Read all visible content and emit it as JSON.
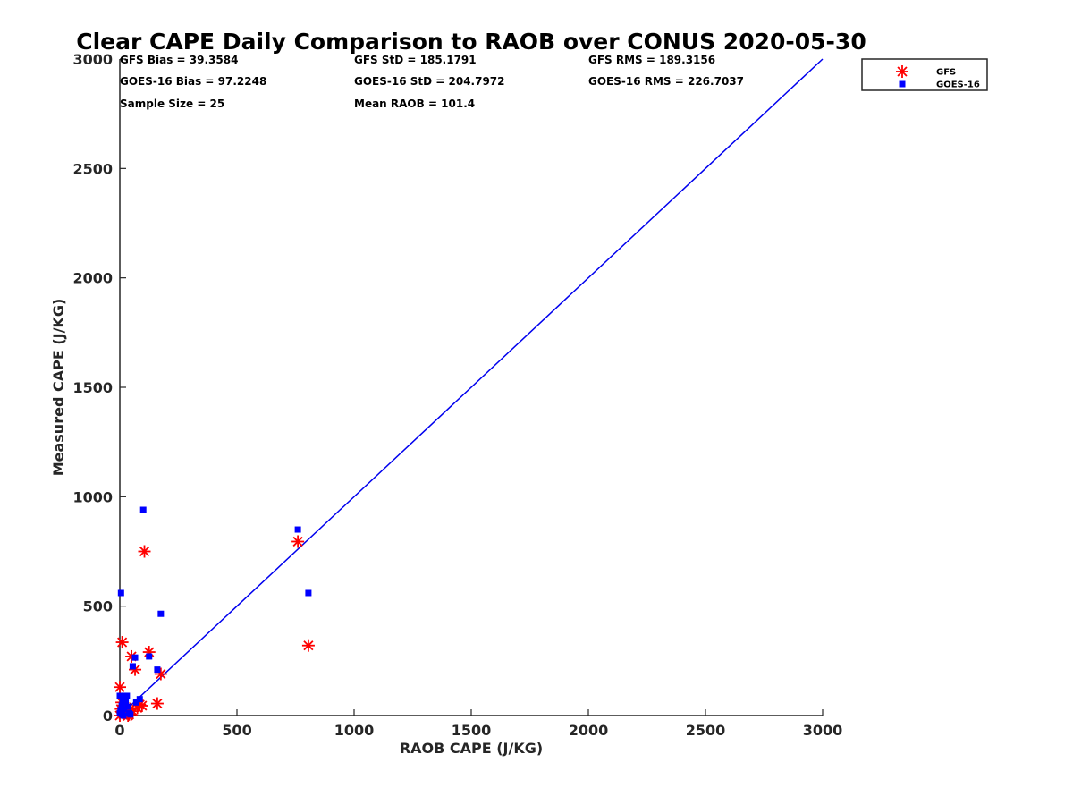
{
  "chart_data": {
    "type": "scatter",
    "title": "Clear CAPE Daily Comparison to RAOB over CONUS 2020-05-30",
    "xlabel": "RAOB CAPE (J/KG)",
    "ylabel": "Measured CAPE (J/KG)",
    "xlim": [
      0,
      3000
    ],
    "ylim": [
      0,
      3000
    ],
    "xticks": [
      "0",
      "500",
      "1000",
      "1500",
      "2000",
      "2500",
      "3000"
    ],
    "yticks": [
      "0",
      "500",
      "1000",
      "1500",
      "2000",
      "2500",
      "3000"
    ],
    "grid": false,
    "legend_position": "top-right",
    "stats": [
      "GFS Bias = 39.3584",
      "GFS StD = 185.1791",
      "GFS RMS = 189.3156",
      "GOES-16 Bias = 97.2248",
      "GOES-16 StD = 204.7972",
      "GOES-16 RMS = 226.7037",
      "Sample Size = 25",
      "Mean RAOB = 101.4"
    ],
    "reference_line": {
      "x": [
        0,
        3000
      ],
      "y": [
        0,
        3000
      ],
      "color": "#0000ee"
    },
    "series": [
      {
        "name": "GFS",
        "marker": "asterisk",
        "color": "#ff0000",
        "points": [
          [
            0,
            130
          ],
          [
            5,
            30
          ],
          [
            10,
            335
          ],
          [
            15,
            5
          ],
          [
            20,
            40
          ],
          [
            25,
            15
          ],
          [
            30,
            10
          ],
          [
            35,
            0
          ],
          [
            40,
            5
          ],
          [
            50,
            270
          ],
          [
            55,
            20
          ],
          [
            65,
            210
          ],
          [
            75,
            35
          ],
          [
            85,
            50
          ],
          [
            95,
            45
          ],
          [
            105,
            750
          ],
          [
            125,
            290
          ],
          [
            160,
            55
          ],
          [
            175,
            190
          ],
          [
            760,
            795
          ],
          [
            805,
            320
          ],
          [
            0,
            0
          ],
          [
            12,
            20
          ],
          [
            45,
            30
          ],
          [
            8,
            60
          ]
        ]
      },
      {
        "name": "GOES-16",
        "marker": "square",
        "color": "#0000ff",
        "points": [
          [
            0,
            90
          ],
          [
            5,
            560
          ],
          [
            8,
            45
          ],
          [
            10,
            5
          ],
          [
            15,
            0
          ],
          [
            18,
            30
          ],
          [
            20,
            90
          ],
          [
            25,
            60
          ],
          [
            30,
            90
          ],
          [
            35,
            40
          ],
          [
            40,
            10
          ],
          [
            55,
            225
          ],
          [
            65,
            265
          ],
          [
            85,
            75
          ],
          [
            100,
            940
          ],
          [
            125,
            270
          ],
          [
            160,
            210
          ],
          [
            175,
            465
          ],
          [
            760,
            850
          ],
          [
            805,
            560
          ],
          [
            0,
            10
          ],
          [
            12,
            70
          ],
          [
            3,
            25
          ],
          [
            45,
            5
          ],
          [
            70,
            60
          ]
        ]
      }
    ]
  }
}
